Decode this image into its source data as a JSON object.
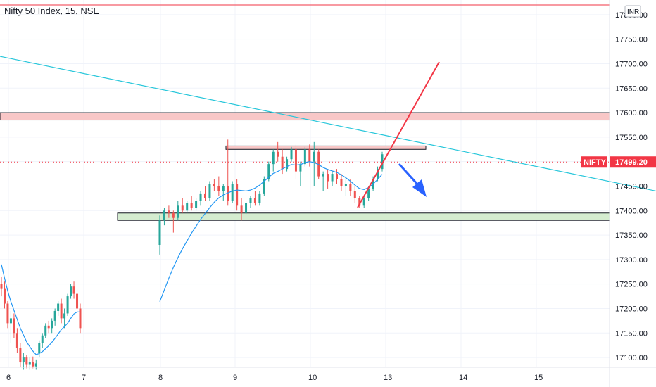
{
  "header": {
    "title": "Nifty 50 Index, 15, NSE"
  },
  "price_axis": {
    "currency": "INR",
    "ticks": [
      "17800.00",
      "17750.00",
      "17700.00",
      "17650.00",
      "17600.00",
      "17550.00",
      "17500.00",
      "17450.00",
      "17400.00",
      "17350.00",
      "17300.00",
      "17250.00",
      "17200.00",
      "17150.00",
      "17100.00"
    ]
  },
  "current_price": {
    "symbol": "NIFTY",
    "value": "17499.20",
    "color": "#f23645"
  },
  "chart_data": {
    "type": "candlestick",
    "title": "Nifty 50 Index, 15, NSE",
    "ylim": [
      17080,
      17830
    ],
    "x_ticks": [
      "6",
      "7",
      "8",
      "9",
      "10",
      "13",
      "14",
      "15"
    ],
    "colors": {
      "up": "#26a69a",
      "down": "#ef5350",
      "ma": "#2196f3",
      "trend": "#26c6da",
      "resistance_fill": "#f8c7c7",
      "support_fill": "#d4ecd0",
      "arrow": "#2962ff",
      "breakout": "#f23645"
    },
    "candles": [
      [
        17250,
        17265,
        17225,
        17240
      ],
      [
        17240,
        17255,
        17200,
        17210
      ],
      [
        17210,
        17215,
        17160,
        17170
      ],
      [
        17170,
        17195,
        17130,
        17180
      ],
      [
        17180,
        17190,
        17140,
        17150
      ],
      [
        17150,
        17160,
        17110,
        17120
      ],
      [
        17120,
        17130,
        17080,
        17090
      ],
      [
        17090,
        17110,
        17075,
        17100
      ],
      [
        17100,
        17105,
        17078,
        17085
      ],
      [
        17085,
        17100,
        17075,
        17090
      ],
      [
        17090,
        17102,
        17078,
        17082
      ],
      [
        17082,
        17096,
        17075,
        17088
      ],
      [
        17110,
        17135,
        17100,
        17130
      ],
      [
        17130,
        17150,
        17120,
        17145
      ],
      [
        17145,
        17170,
        17140,
        17165
      ],
      [
        17165,
        17175,
        17150,
        17160
      ],
      [
        17160,
        17180,
        17150,
        17175
      ],
      [
        17175,
        17200,
        17165,
        17195
      ],
      [
        17195,
        17215,
        17185,
        17210
      ],
      [
        17210,
        17220,
        17170,
        17180
      ],
      [
        17180,
        17200,
        17160,
        17190
      ],
      [
        17190,
        17230,
        17185,
        17225
      ],
      [
        17225,
        17250,
        17220,
        17245
      ],
      [
        17245,
        17255,
        17220,
        17230
      ],
      [
        17230,
        17240,
        17190,
        17200
      ],
      [
        17200,
        17210,
        17150,
        17160
      ],
      [
        17330,
        17390,
        17310,
        17380
      ],
      [
        17380,
        17405,
        17370,
        17400
      ],
      [
        17400,
        17410,
        17385,
        17395
      ],
      [
        17395,
        17400,
        17355,
        17385
      ],
      [
        17385,
        17420,
        17380,
        17410
      ],
      [
        17410,
        17425,
        17395,
        17400
      ],
      [
        17400,
        17420,
        17395,
        17415
      ],
      [
        17415,
        17430,
        17400,
        17405
      ],
      [
        17405,
        17425,
        17400,
        17420
      ],
      [
        17420,
        17440,
        17410,
        17435
      ],
      [
        17435,
        17450,
        17420,
        17425
      ],
      [
        17425,
        17460,
        17420,
        17455
      ],
      [
        17455,
        17465,
        17440,
        17450
      ],
      [
        17450,
        17470,
        17430,
        17440
      ],
      [
        17440,
        17455,
        17420,
        17450
      ],
      [
        17450,
        17545,
        17410,
        17420
      ],
      [
        17420,
        17460,
        17415,
        17455
      ],
      [
        17455,
        17465,
        17400,
        17410
      ],
      [
        17410,
        17425,
        17380,
        17395
      ],
      [
        17395,
        17420,
        17390,
        17415
      ],
      [
        17415,
        17430,
        17405,
        17425
      ],
      [
        17425,
        17440,
        17410,
        17415
      ],
      [
        17415,
        17440,
        17410,
        17435
      ],
      [
        17435,
        17470,
        17430,
        17465
      ],
      [
        17465,
        17500,
        17460,
        17495
      ],
      [
        17495,
        17525,
        17480,
        17520
      ],
      [
        17520,
        17540,
        17500,
        17510
      ],
      [
        17510,
        17525,
        17475,
        17485
      ],
      [
        17485,
        17510,
        17480,
        17505
      ],
      [
        17505,
        17530,
        17500,
        17525
      ],
      [
        17525,
        17535,
        17465,
        17480
      ],
      [
        17480,
        17500,
        17450,
        17495
      ],
      [
        17495,
        17530,
        17490,
        17525
      ],
      [
        17525,
        17535,
        17490,
        17500
      ],
      [
        17500,
        17540,
        17450,
        17520
      ],
      [
        17520,
        17525,
        17465,
        17470
      ],
      [
        17470,
        17480,
        17440,
        17475
      ],
      [
        17475,
        17485,
        17445,
        17460
      ],
      [
        17460,
        17480,
        17450,
        17475
      ],
      [
        17475,
        17485,
        17455,
        17465
      ],
      [
        17465,
        17475,
        17440,
        17450
      ],
      [
        17450,
        17470,
        17430,
        17455
      ],
      [
        17455,
        17465,
        17430,
        17440
      ],
      [
        17440,
        17450,
        17415,
        17425
      ],
      [
        17425,
        17430,
        17405,
        17410
      ],
      [
        17410,
        17430,
        17405,
        17425
      ],
      [
        17425,
        17450,
        17420,
        17445
      ],
      [
        17445,
        17470,
        17440,
        17465
      ],
      [
        17465,
        17490,
        17460,
        17485
      ],
      [
        17485,
        17520,
        17480,
        17515
      ]
    ],
    "ma": [
      17290,
      17262,
      17236,
      17214,
      17196,
      17178,
      17160,
      17146,
      17132,
      17122,
      17113,
      17106,
      17108,
      17112,
      17118,
      17124,
      17131,
      17139,
      17148,
      17157,
      17163,
      17170,
      17180,
      17189,
      17193,
      17193,
      17214,
      17238,
      17262,
      17284,
      17304,
      17322,
      17338,
      17354,
      17368,
      17382,
      17394,
      17406,
      17417,
      17426,
      17432,
      17436,
      17440,
      17442,
      17441,
      17440,
      17442,
      17446,
      17452,
      17460,
      17468,
      17476,
      17480,
      17485,
      17490,
      17494,
      17493,
      17494,
      17498,
      17500,
      17498,
      17494,
      17488,
      17484,
      17481,
      17478,
      17473,
      17467,
      17460,
      17452,
      17445,
      17443,
      17447,
      17454,
      17464,
      17474
    ],
    "trendline": [
      [
        0,
        17715
      ],
      [
        932,
        17440
      ]
    ],
    "resistance_zone": [
      17585,
      17600
    ],
    "support_zone": [
      17380,
      17395
    ],
    "resistance_line": 17820,
    "top_box": [
      17525,
      17532
    ],
    "annotations": {
      "breakout_line": "red",
      "downside_arrow": "blue"
    }
  }
}
